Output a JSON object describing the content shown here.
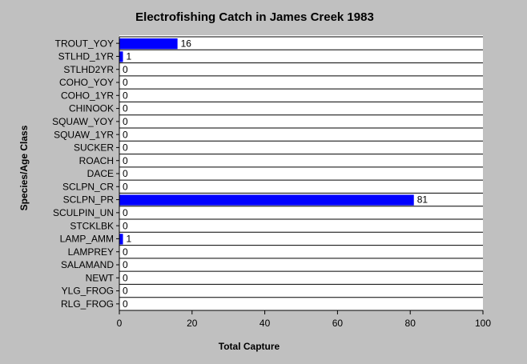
{
  "chart_data": {
    "type": "bar",
    "orientation": "horizontal",
    "title": "Electrofishing Catch in James Creek 1983",
    "x_label": "Total Capture",
    "y_label": "Species/Age Class",
    "categories": [
      "TROUT_YOY",
      "STLHD_1YR",
      "STLHD2YR",
      "COHO_YOY",
      "COHO_1YR",
      "CHINOOK",
      "SQUAW_YOY",
      "SQUAW_1YR",
      "SUCKER",
      "ROACH",
      "DACE",
      "SCLPN_CR",
      "SCLPN_PR",
      "SCULPIN_UN",
      "STCKLBK",
      "LAMP_AMM",
      "LAMPREY",
      "SALAMAND",
      "NEWT",
      "YLG_FROG",
      "RLG_FROG"
    ],
    "values": [
      16,
      1,
      0,
      0,
      0,
      0,
      0,
      0,
      0,
      0,
      0,
      0,
      81,
      0,
      0,
      1,
      0,
      0,
      0,
      0,
      0
    ],
    "color": "#0000ff",
    "xlim": [
      0,
      100
    ],
    "xticks": [
      0,
      20,
      40,
      60,
      80,
      100
    ]
  }
}
